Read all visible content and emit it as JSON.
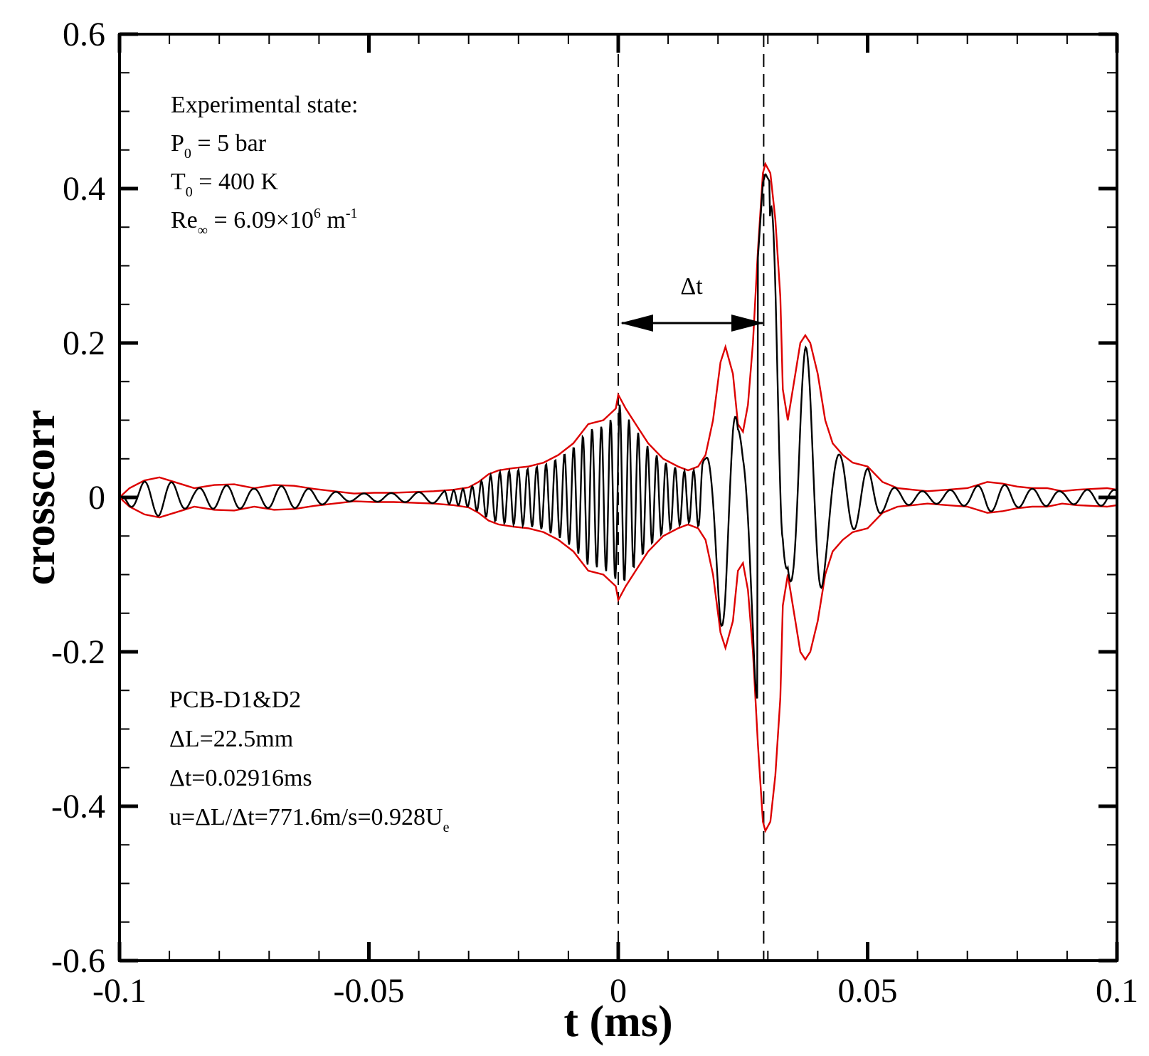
{
  "chart_data": {
    "type": "line",
    "xlabel": "t (ms)",
    "ylabel": "crosscorr",
    "xlim": [
      -0.1,
      0.1
    ],
    "ylim": [
      -0.6,
      0.6
    ],
    "x_ticks": [
      -0.1,
      -0.05,
      0,
      0.05,
      0.1
    ],
    "x_tick_labels": [
      "-0.1",
      "-0.05",
      "0",
      "0.05",
      "0.1"
    ],
    "y_ticks": [
      -0.6,
      -0.4,
      -0.2,
      0,
      0.2,
      0.4,
      0.6
    ],
    "y_tick_labels": [
      "-0.6",
      "-0.4",
      "-0.2",
      "0",
      "0.2",
      "0.4",
      "0.6"
    ],
    "x_minor_step": 0.01,
    "y_minor_step": 0.05,
    "vlines": [
      0,
      0.02916
    ],
    "series": [
      {
        "name": "crosscorr",
        "color": "#000000",
        "kind": "oscillation",
        "samples": 1400
      },
      {
        "name": "envelope",
        "color": "#dd0000",
        "kind": "envelope",
        "points": [
          [
            -0.1,
            0.0
          ],
          [
            -0.098,
            0.012
          ],
          [
            -0.095,
            0.022
          ],
          [
            -0.092,
            0.026
          ],
          [
            -0.089,
            0.02
          ],
          [
            -0.085,
            0.012
          ],
          [
            -0.081,
            0.016
          ],
          [
            -0.077,
            0.017
          ],
          [
            -0.073,
            0.012
          ],
          [
            -0.069,
            0.016
          ],
          [
            -0.065,
            0.015
          ],
          [
            -0.061,
            0.011
          ],
          [
            -0.057,
            0.008
          ],
          [
            -0.053,
            0.005
          ],
          [
            -0.049,
            0.006
          ],
          [
            -0.045,
            0.006
          ],
          [
            -0.041,
            0.007
          ],
          [
            -0.037,
            0.008
          ],
          [
            -0.033,
            0.01
          ],
          [
            -0.03,
            0.013
          ],
          [
            -0.028,
            0.02
          ],
          [
            -0.026,
            0.03
          ],
          [
            -0.024,
            0.035
          ],
          [
            -0.021,
            0.038
          ],
          [
            -0.018,
            0.04
          ],
          [
            -0.015,
            0.045
          ],
          [
            -0.012,
            0.055
          ],
          [
            -0.009,
            0.07
          ],
          [
            -0.006,
            0.095
          ],
          [
            -0.003,
            0.1
          ],
          [
            -0.0005,
            0.115
          ],
          [
            0.0,
            0.133
          ],
          [
            0.0015,
            0.115
          ],
          [
            0.004,
            0.09
          ],
          [
            0.006,
            0.07
          ],
          [
            0.009,
            0.05
          ],
          [
            0.012,
            0.04
          ],
          [
            0.014,
            0.035
          ],
          [
            0.016,
            0.04
          ],
          [
            0.0175,
            0.055
          ],
          [
            0.019,
            0.1
          ],
          [
            0.0205,
            0.175
          ],
          [
            0.0215,
            0.195
          ],
          [
            0.023,
            0.16
          ],
          [
            0.024,
            0.095
          ],
          [
            0.025,
            0.085
          ],
          [
            0.026,
            0.12
          ],
          [
            0.027,
            0.2
          ],
          [
            0.028,
            0.32
          ],
          [
            0.029,
            0.42
          ],
          [
            0.0295,
            0.432
          ],
          [
            0.0305,
            0.42
          ],
          [
            0.0315,
            0.36
          ],
          [
            0.0325,
            0.26
          ],
          [
            0.033,
            0.14
          ],
          [
            0.034,
            0.1
          ],
          [
            0.0355,
            0.16
          ],
          [
            0.0365,
            0.2
          ],
          [
            0.0375,
            0.21
          ],
          [
            0.0385,
            0.2
          ],
          [
            0.04,
            0.16
          ],
          [
            0.0415,
            0.1
          ],
          [
            0.043,
            0.07
          ],
          [
            0.045,
            0.055
          ],
          [
            0.047,
            0.045
          ],
          [
            0.05,
            0.04
          ],
          [
            0.053,
            0.02
          ],
          [
            0.056,
            0.012
          ],
          [
            0.059,
            0.01
          ],
          [
            0.062,
            0.008
          ],
          [
            0.066,
            0.01
          ],
          [
            0.07,
            0.012
          ],
          [
            0.074,
            0.02
          ],
          [
            0.077,
            0.018
          ],
          [
            0.08,
            0.014
          ],
          [
            0.083,
            0.012
          ],
          [
            0.086,
            0.012
          ],
          [
            0.089,
            0.008
          ],
          [
            0.092,
            0.01
          ],
          [
            0.095,
            0.011
          ],
          [
            0.098,
            0.012
          ],
          [
            0.1,
            0.01
          ]
        ]
      }
    ],
    "annotations": {
      "state_title": "Experimental state:",
      "p0_main": "P",
      "p0_sub": "0",
      "p0_rest": " = 5 bar",
      "t0_main": "T",
      "t0_sub": "0",
      "t0_rest": " = 400 K",
      "re_main": "Re",
      "re_sub": "∞",
      "re_mid": " = 6.09×10",
      "re_sup": "6",
      "re_unit": " m",
      "re_unit_sup": "-1",
      "delta_t_label": "Δt",
      "sensor": "PCB-D1&D2",
      "dl": "ΔL=22.5mm",
      "dt": "Δt=0.02916ms",
      "u_main": "u=ΔL/Δt=771.6m/s=0.928U",
      "u_sub": "e"
    }
  }
}
